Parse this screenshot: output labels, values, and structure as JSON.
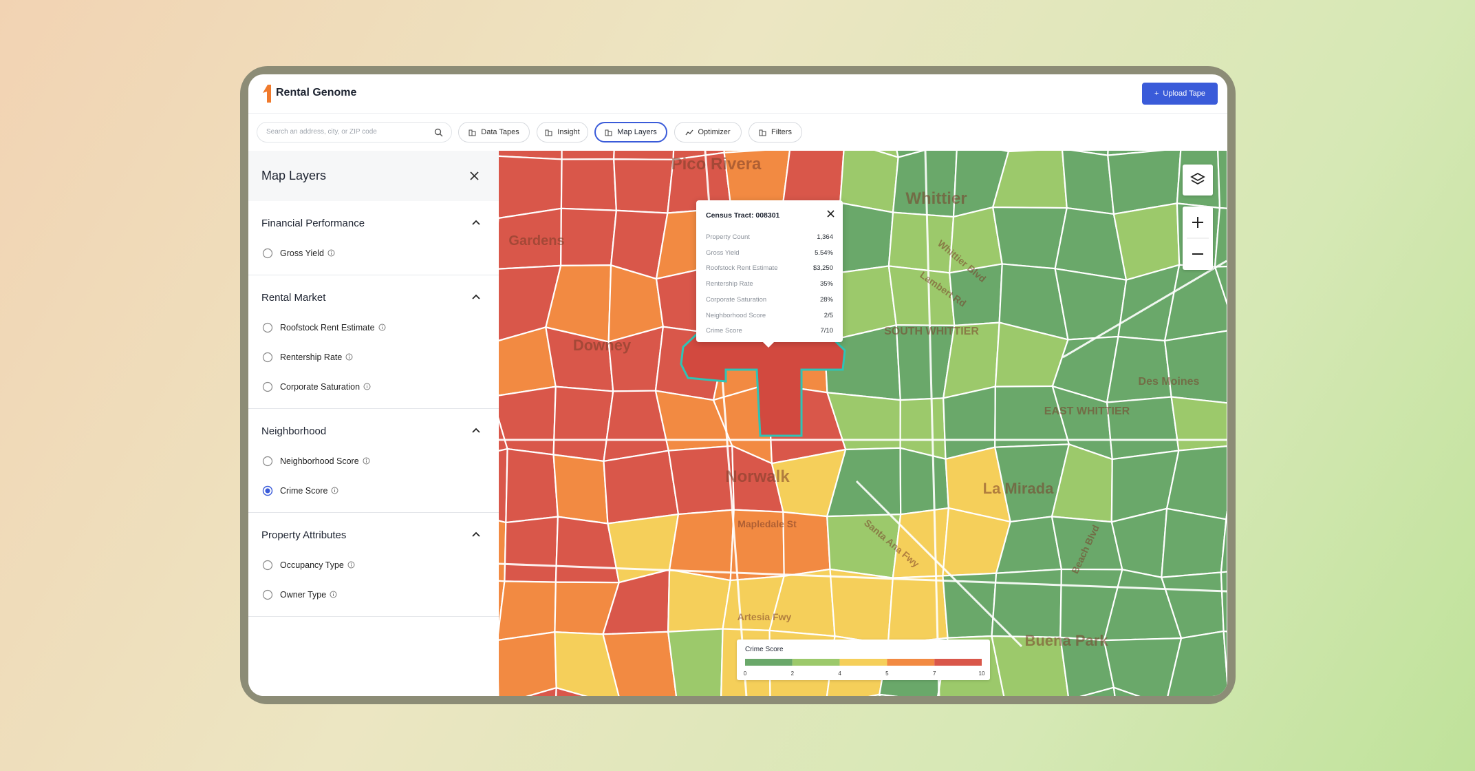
{
  "header": {
    "brand": "Rental Genome",
    "upload_button": "Upload Tape"
  },
  "toolbar": {
    "search_placeholder": "Search an address, city, or ZIP code",
    "buttons": [
      {
        "label": "Data Tapes"
      },
      {
        "label": "Insight"
      },
      {
        "label": "Map Layers",
        "active": true
      },
      {
        "label": "Optimizer"
      },
      {
        "label": "Filters"
      }
    ]
  },
  "sidebar": {
    "title": "Map Layers",
    "sections": [
      {
        "title": "Financial Performance",
        "options": [
          {
            "label": "Gross Yield"
          }
        ]
      },
      {
        "title": "Rental Market",
        "options": [
          {
            "label": "Roofstock Rent Estimate"
          },
          {
            "label": "Rentership Rate"
          },
          {
            "label": "Corporate Saturation"
          }
        ]
      },
      {
        "title": "Neighborhood",
        "options": [
          {
            "label": "Neighborhood Score"
          },
          {
            "label": "Crime Score",
            "selected": true
          }
        ]
      },
      {
        "title": "Property Attributes",
        "options": [
          {
            "label": "Occupancy Type"
          },
          {
            "label": "Owner Type"
          }
        ]
      }
    ]
  },
  "map": {
    "labels": [
      "Pico Rivera",
      "Whittier",
      "Gardens",
      "Downey",
      "SOUTH WHITTIER",
      "EAST WHITTIER",
      "Des Moines",
      "Norwalk",
      "La Mirada",
      "Buena Park",
      "Santa Ana Fwy",
      "Artesia Fwy",
      "Whittier Blvd",
      "Lambert Rd",
      "Beach Blvd",
      "Mapledale St"
    ],
    "popup": {
      "title": "Census Tract: 008301",
      "rows": [
        {
          "label": "Property Count",
          "value": "1,364"
        },
        {
          "label": "Gross Yield",
          "value": "5.54%"
        },
        {
          "label": "Roofstock Rent Estimate",
          "value": "$3,250"
        },
        {
          "label": "Rentership Rate",
          "value": "35%"
        },
        {
          "label": "Corporate Saturation",
          "value": "28%"
        },
        {
          "label": "Neighborhood Score",
          "value": "2/5"
        },
        {
          "label": "Crime Score",
          "value": "7/10"
        }
      ]
    },
    "legend": {
      "title": "Crime Score",
      "ticks": [
        0,
        2,
        4,
        5,
        7,
        10
      ],
      "colors": [
        "#6aa86a",
        "#9cc96b",
        "#f5cf5a",
        "#f28a42",
        "#d9574a"
      ]
    }
  }
}
